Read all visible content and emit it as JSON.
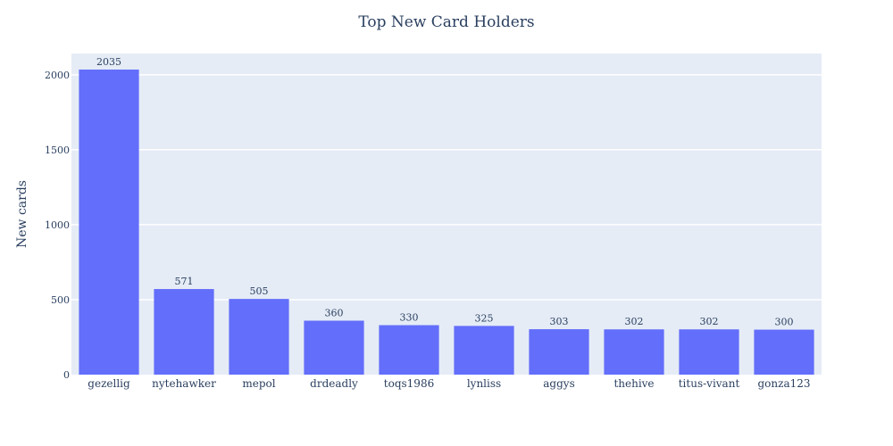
{
  "chart_data": {
    "type": "bar",
    "title": "Top New Card Holders",
    "xlabel": "",
    "ylabel": "New cards",
    "categories": [
      "gezellig",
      "nytehawker",
      "mepol",
      "drdeadly",
      "toqs1986",
      "lynliss",
      "aggys",
      "thehive",
      "titus-vivant",
      "gonza123"
    ],
    "values": [
      2035,
      571,
      505,
      360,
      330,
      325,
      303,
      302,
      302,
      300
    ],
    "ylim": [
      0,
      2142
    ],
    "yticks": [
      0,
      500,
      1000,
      1500,
      2000
    ],
    "grid": true,
    "legend": "none",
    "colors": {
      "bar": "#636efa",
      "plot_bg": "#e5ecf6",
      "grid": "#ffffff",
      "text": "#2a3f5f"
    }
  }
}
